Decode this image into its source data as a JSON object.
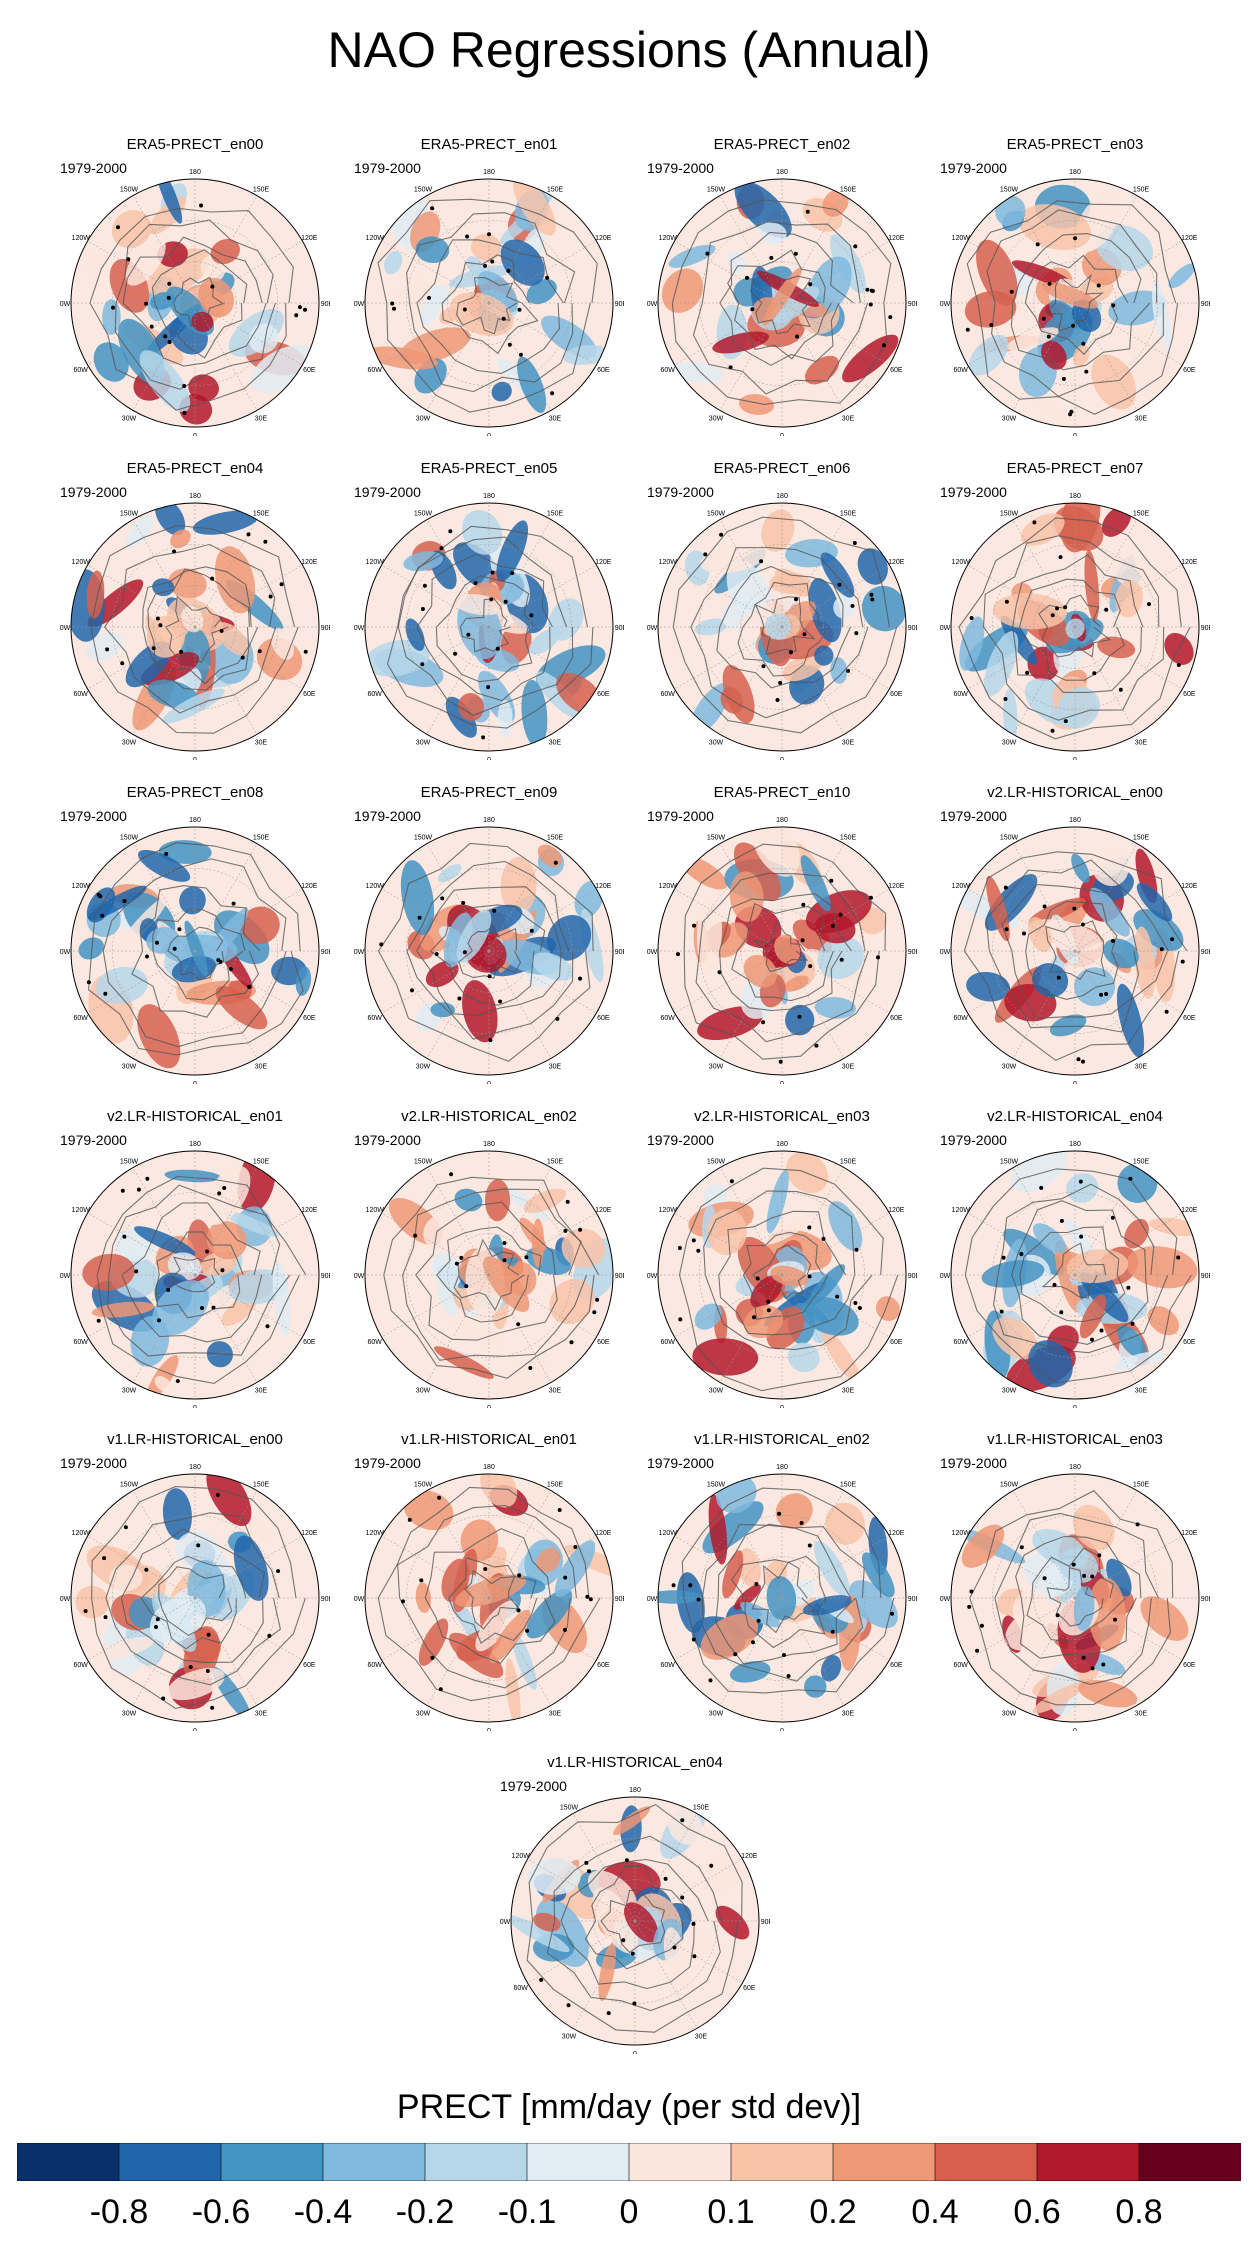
{
  "title": "NAO Regressions (Annual)",
  "chart_data": {
    "type": "heatmap",
    "projection": "polar stereographic (Northern Hemisphere)",
    "grid": true,
    "period": "1979-2000",
    "lon_labels": [
      "180",
      "150E",
      "120E",
      "90E",
      "60E",
      "30E",
      "0",
      "30W",
      "60W",
      "90W",
      "120W",
      "150W"
    ],
    "panels": [
      {
        "title": "ERA5-PRECT_en00",
        "seed": 11
      },
      {
        "title": "ERA5-PRECT_en01",
        "seed": 12
      },
      {
        "title": "ERA5-PRECT_en02",
        "seed": 13
      },
      {
        "title": "ERA5-PRECT_en03",
        "seed": 14
      },
      {
        "title": "ERA5-PRECT_en04",
        "seed": 15
      },
      {
        "title": "ERA5-PRECT_en05",
        "seed": 16
      },
      {
        "title": "ERA5-PRECT_en06",
        "seed": 17
      },
      {
        "title": "ERA5-PRECT_en07",
        "seed": 18
      },
      {
        "title": "ERA5-PRECT_en08",
        "seed": 19
      },
      {
        "title": "ERA5-PRECT_en09",
        "seed": 20
      },
      {
        "title": "ERA5-PRECT_en10",
        "seed": 21
      },
      {
        "title": "v2.LR-HISTORICAL_en00",
        "seed": 31
      },
      {
        "title": "v2.LR-HISTORICAL_en01",
        "seed": 32
      },
      {
        "title": "v2.LR-HISTORICAL_en02",
        "seed": 33
      },
      {
        "title": "v2.LR-HISTORICAL_en03",
        "seed": 34
      },
      {
        "title": "v2.LR-HISTORICAL_en04",
        "seed": 35
      },
      {
        "title": "v1.LR-HISTORICAL_en00",
        "seed": 41
      },
      {
        "title": "v1.LR-HISTORICAL_en01",
        "seed": 42
      },
      {
        "title": "v1.LR-HISTORICAL_en02",
        "seed": 43
      },
      {
        "title": "v1.LR-HISTORICAL_en03",
        "seed": 44
      },
      {
        "title": "v1.LR-HISTORICAL_en04",
        "seed": 45
      }
    ],
    "colorbar": {
      "title": "PRECT [mm/day (per std dev)]",
      "levels": [
        -0.8,
        -0.6,
        -0.4,
        -0.2,
        -0.1,
        0,
        0.1,
        0.2,
        0.4,
        0.6,
        0.8
      ],
      "tick_labels": [
        "-0.8",
        "-0.6",
        "-0.4",
        "-0.2",
        "-0.1",
        "0",
        "0.1",
        "0.2",
        "0.4",
        "0.6",
        "0.8"
      ],
      "colors": [
        "#08306b",
        "#2166ac",
        "#4393c3",
        "#7fbadf",
        "#b6d7ea",
        "#e1ecf3",
        "#fbe6dd",
        "#f8c3a8",
        "#ee9876",
        "#d6604d",
        "#b2182b",
        "#67001f"
      ]
    }
  }
}
